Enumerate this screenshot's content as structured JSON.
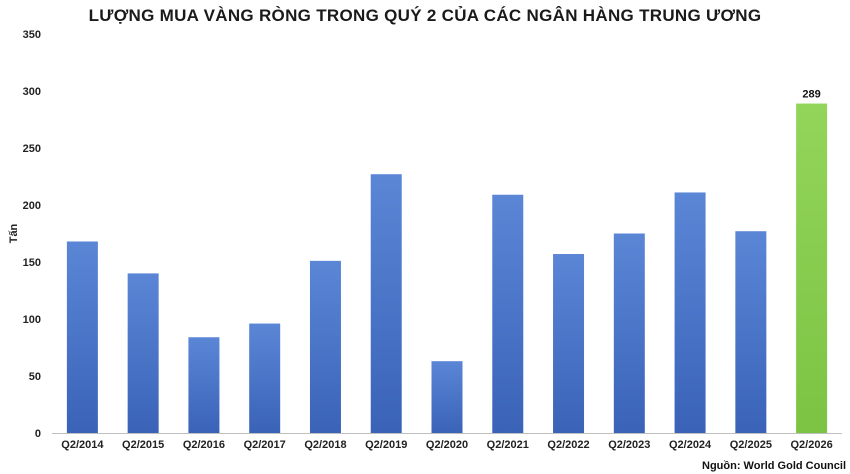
{
  "title": "LƯỢNG MUA VÀNG RÒNG TRONG QUÝ 2 CỦA CÁC NGÂN HÀNG TRUNG ƯƠNG",
  "source": "Nguồn: World Gold Council",
  "colors": {
    "bar": "#4472c4",
    "highlight": "#8fd14f",
    "axis": "#bfbfbf"
  },
  "chart_data": {
    "type": "bar",
    "title": "LƯỢNG MUA VÀNG RÒNG TRONG QUÝ 2 CỦA CÁC NGÂN HÀNG TRUNG ƯƠNG",
    "xlabel": "",
    "ylabel": "Tấn",
    "ylim": [
      0,
      350
    ],
    "yticks": [
      0,
      50,
      100,
      150,
      200,
      250,
      300,
      350
    ],
    "grid": false,
    "categories": [
      "Q2/2014",
      "Q2/2015",
      "Q2/2016",
      "Q2/2017",
      "Q2/2018",
      "Q2/2019",
      "Q2/2020",
      "Q2/2021",
      "Q2/2022",
      "Q2/2023",
      "Q2/2024",
      "Q2/2025",
      "Q2/2026"
    ],
    "values": [
      168,
      140,
      84,
      96,
      151,
      227,
      63,
      209,
      157,
      175,
      211,
      177,
      289
    ],
    "highlight_index": 12,
    "data_labels": {
      "12": "289"
    }
  }
}
